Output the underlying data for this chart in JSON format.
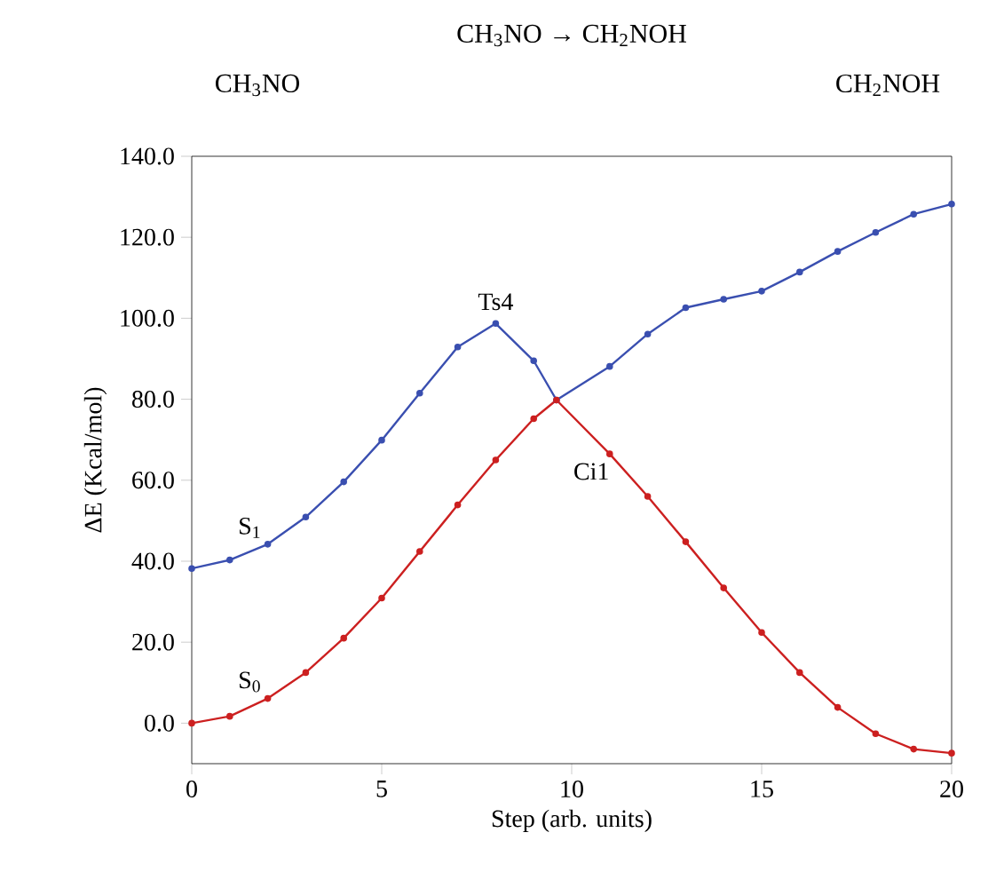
{
  "chart_data": {
    "type": "line",
    "title": "CH$_{3}$NO → CH$_{2}$NOH",
    "xlabel": "Step (arb. units)",
    "ylabel": "ΔE (Kcal/mol)",
    "x": [
      0,
      1,
      2,
      3,
      4,
      5,
      6,
      7,
      8,
      9,
      9.6,
      11,
      12,
      13,
      14,
      15,
      16,
      17,
      18,
      19,
      20
    ],
    "series": [
      {
        "name": "S$_{1}$",
        "color": "#3a4fb0",
        "values": [
          38.2,
          40.3,
          44.2,
          50.9,
          59.6,
          69.9,
          81.5,
          92.9,
          98.7,
          89.5,
          79.8,
          88.1,
          96.1,
          102.6,
          104.7,
          106.7,
          111.4,
          116.5,
          121.2,
          125.7,
          128.2
        ]
      },
      {
        "name": "S$_{0}$",
        "color": "#cc2020",
        "values": [
          0,
          1.7,
          6.1,
          12.5,
          21.0,
          30.9,
          42.4,
          53.9,
          65.0,
          75.2,
          79.8,
          66.5,
          56.0,
          44.8,
          33.4,
          22.4,
          12.5,
          3.9,
          -2.6,
          -6.4,
          -7.4
        ]
      }
    ],
    "xlim": [
      0,
      20
    ],
    "ylim": [
      -10,
      140
    ],
    "xticks": [
      0,
      5,
      10,
      15,
      20
    ],
    "yticks": [
      {
        "value": 0,
        "label": "0.0"
      },
      {
        "value": 20,
        "label": "20.0"
      },
      {
        "value": 40,
        "label": "40.0"
      },
      {
        "value": 60,
        "label": "60.0"
      },
      {
        "value": 80,
        "label": "80.0"
      },
      {
        "value": 100,
        "label": "100.0"
      },
      {
        "value": 120,
        "label": "120.0"
      },
      {
        "value": 140,
        "label": "140.0"
      }
    ],
    "annotations": [
      "CH$_{3}$NO",
      "CH$_{2}$NOH",
      {
        "text": "Ts4",
        "x": 8,
        "y": 98.7
      },
      {
        "text": "Ci1",
        "x": 9.6,
        "y": 79.8
      }
    ],
    "marker": "circle",
    "line_style": "solid",
    "grid": false
  }
}
